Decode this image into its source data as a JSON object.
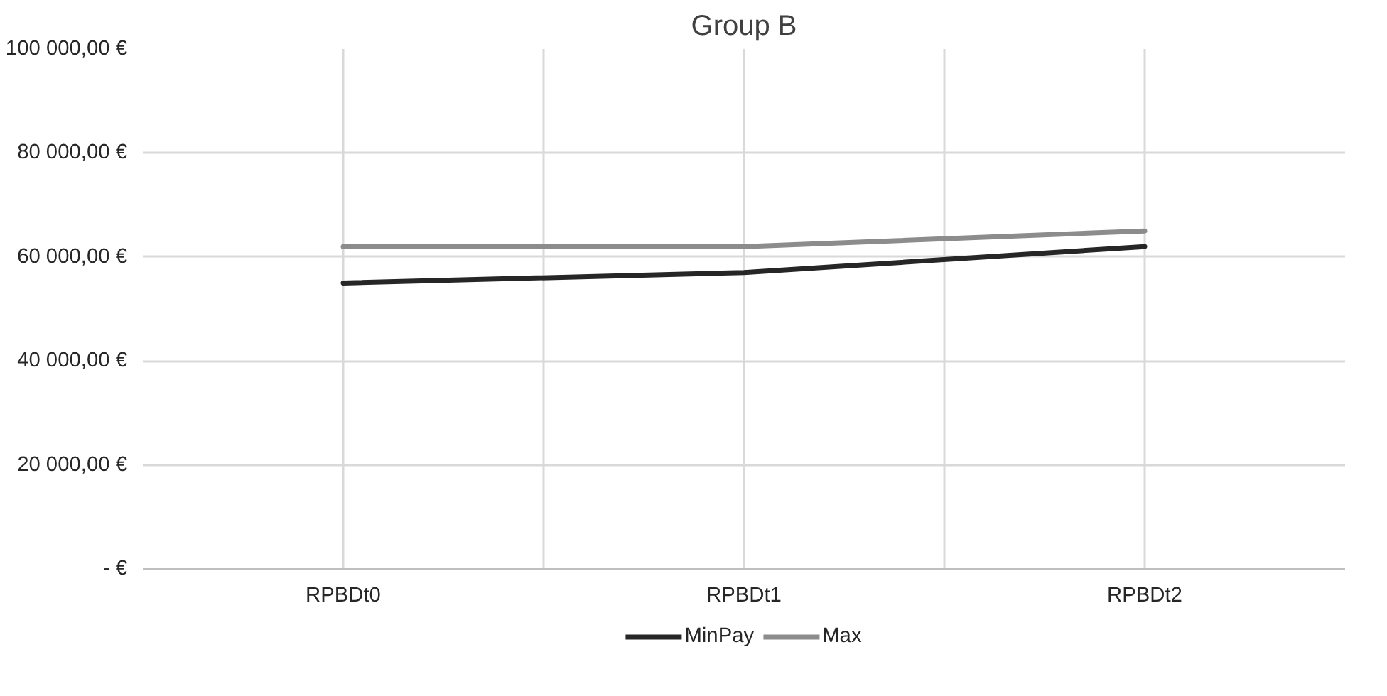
{
  "chart_data": {
    "type": "line",
    "title": "Group B",
    "categories": [
      "RPBDt0",
      "RPBDt1",
      "RPBDt2"
    ],
    "series": [
      {
        "name": "MinPay",
        "color": "#262626",
        "values": [
          55000,
          57000,
          62000
        ]
      },
      {
        "name": "Max",
        "color": "#8c8c8c",
        "values": [
          62000,
          62000,
          65000
        ]
      }
    ],
    "ylim": [
      0,
      100000
    ],
    "yticks": [
      {
        "value": 0,
        "label": "- €"
      },
      {
        "value": 20000,
        "label": "20 000,00 €"
      },
      {
        "value": 40000,
        "label": "40 000,00 €"
      },
      {
        "value": 60000,
        "label": "60 000,00 €"
      },
      {
        "value": 80000,
        "label": "80 000,00 €"
      },
      {
        "value": 100000,
        "label": "100 000,00 €"
      }
    ],
    "grid": true,
    "legend": "bottom",
    "marker": "none",
    "line_style": "solid"
  }
}
